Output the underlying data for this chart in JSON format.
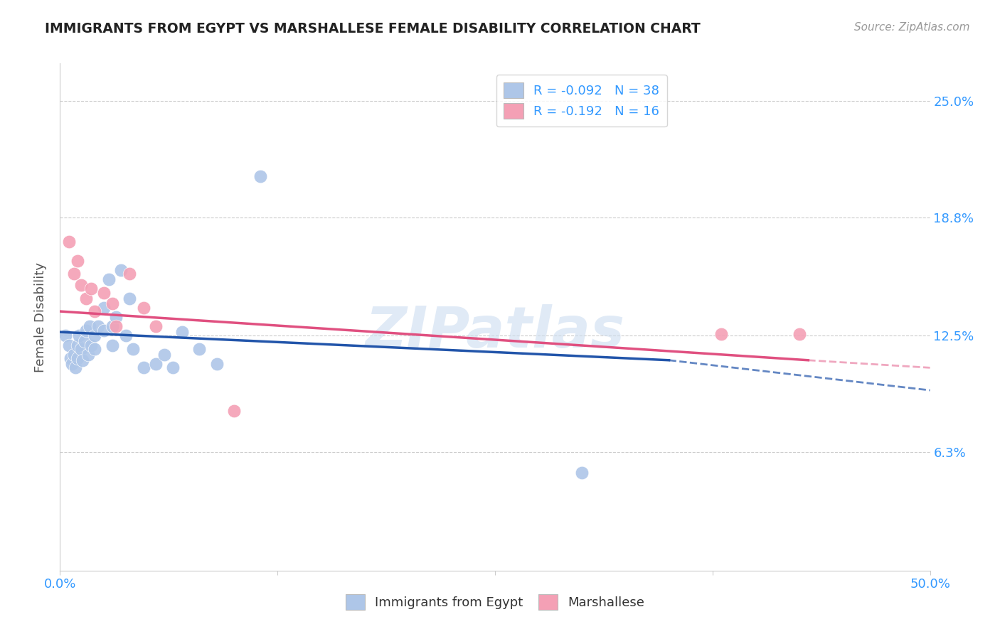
{
  "title": "IMMIGRANTS FROM EGYPT VS MARSHALLESE FEMALE DISABILITY CORRELATION CHART",
  "source": "Source: ZipAtlas.com",
  "ylabel_label": "Female Disability",
  "x_ticks": [
    0.0,
    0.125,
    0.25,
    0.375,
    0.5
  ],
  "x_tick_labels": [
    "0.0%",
    "",
    "",
    "",
    "50.0%"
  ],
  "y_ticks": [
    0.0,
    0.063,
    0.125,
    0.188,
    0.25
  ],
  "y_tick_labels": [
    "",
    "6.3%",
    "12.5%",
    "18.8%",
    "25.0%"
  ],
  "xlim": [
    0.0,
    0.5
  ],
  "ylim": [
    0.0,
    0.27
  ],
  "legend_R1": "R = -0.092",
  "legend_N1": "N = 38",
  "legend_R2": "R = -0.192",
  "legend_N2": "N = 16",
  "watermark": "ZIPatlas",
  "blue_scatter_x": [
    0.003,
    0.005,
    0.006,
    0.007,
    0.008,
    0.009,
    0.01,
    0.01,
    0.011,
    0.012,
    0.013,
    0.014,
    0.015,
    0.016,
    0.017,
    0.018,
    0.02,
    0.02,
    0.022,
    0.025,
    0.025,
    0.028,
    0.03,
    0.03,
    0.032,
    0.035,
    0.038,
    0.04,
    0.042,
    0.048,
    0.055,
    0.06,
    0.065,
    0.07,
    0.08,
    0.09,
    0.115,
    0.3
  ],
  "blue_scatter_y": [
    0.125,
    0.12,
    0.113,
    0.11,
    0.115,
    0.108,
    0.12,
    0.113,
    0.125,
    0.118,
    0.112,
    0.122,
    0.128,
    0.115,
    0.13,
    0.12,
    0.125,
    0.118,
    0.13,
    0.14,
    0.128,
    0.155,
    0.13,
    0.12,
    0.135,
    0.16,
    0.125,
    0.145,
    0.118,
    0.108,
    0.11,
    0.115,
    0.108,
    0.127,
    0.118,
    0.11,
    0.21,
    0.052
  ],
  "pink_scatter_x": [
    0.005,
    0.008,
    0.01,
    0.012,
    0.015,
    0.018,
    0.02,
    0.025,
    0.03,
    0.032,
    0.04,
    0.048,
    0.055,
    0.1,
    0.38,
    0.425
  ],
  "pink_scatter_y": [
    0.175,
    0.158,
    0.165,
    0.152,
    0.145,
    0.15,
    0.138,
    0.148,
    0.142,
    0.13,
    0.158,
    0.14,
    0.13,
    0.085,
    0.126,
    0.126
  ],
  "blue_line_x0": 0.0,
  "blue_line_x_solid_end": 0.35,
  "blue_line_x_dash_end": 0.5,
  "blue_line_y0": 0.127,
  "blue_line_y_solid_end": 0.112,
  "blue_line_y_dash_end": 0.096,
  "pink_line_x0": 0.0,
  "pink_line_x_solid_end": 0.43,
  "pink_line_x_dash_end": 0.5,
  "pink_line_y0": 0.138,
  "pink_line_y_solid_end": 0.112,
  "pink_line_y_dash_end": 0.108,
  "blue_color": "#aec6e8",
  "pink_color": "#f4a0b5",
  "blue_line_color": "#2255aa",
  "pink_line_color": "#e05080",
  "grid_color": "#cccccc",
  "tick_color": "#3399ff",
  "background_color": "#ffffff"
}
